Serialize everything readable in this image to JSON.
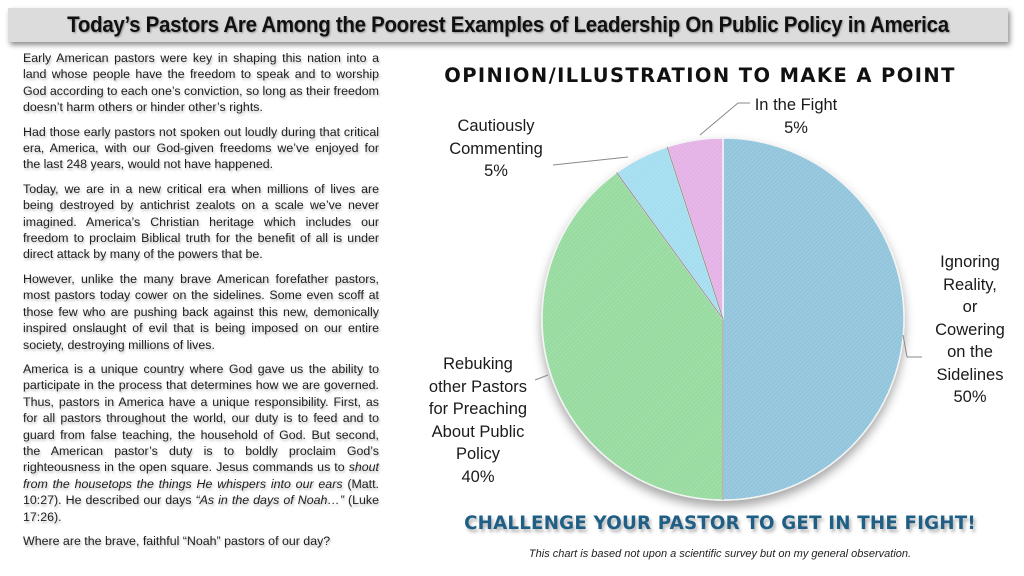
{
  "header": {
    "title": "Today’s Pastors Are Among the Poorest Examples of Leadership On Public Policy in America"
  },
  "article": {
    "paragraphs": [
      "Early American pastors were key in shaping this nation into a land whose people have the freedom to speak and to worship God according to each one’s conviction, so long as their freedom doesn’t harm others or hinder other’s rights.",
      "Had those early pastors not spoken out loudly during that critical era, America, with our God-given freedoms we’ve enjoyed for the last 248 years, would not have happened.",
      "Today, we are in a new critical era when millions of lives are being destroyed by antichrist zealots on a scale we’ve never imagined.  America’s Christian heritage which includes our freedom to proclaim Biblical truth for the benefit of all is under direct attack by many of the powers that be.",
      "However, unlike the many brave American forefather pastors, most pastors today cower on the sidelines. Some even scoff at those few who are pushing back against this new, demonically inspired onslaught of evil that is being imposed on our entire society, destroying millions of lives."
    ],
    "p5": {
      "text_a": "America is a unique country where God gave us the ability to participate in the process that determines how we are governed.  Thus, pastors in America have a unique responsibility.  First, as for all pastors throughout the world, our duty is to feed and to guard from false teaching, the household of God.  But second, the American pastor’s duty is to boldly proclaim God’s righteousness in the open square.  Jesus commands us to ",
      "italic_a": "shout from the housetops the things He whispers into our ears",
      "text_b": " (Matt. 10:27).  He described our days ",
      "italic_b": "“As in the days of Noah…”",
      "text_c": " (Luke 17:26)."
    },
    "closing": "Where are the brave, faithful “Noah” pastors of our day?"
  },
  "chart": {
    "title": "OPINION/ILLUSTRATION TO MAKE A POINT",
    "labels": {
      "fight_name": "In the Fight",
      "fight_pct": "5%",
      "cautious_l1": "Cautiously",
      "cautious_l2": "Commenting",
      "cautious_pct": "5%",
      "ignoring_l1": "Ignoring",
      "ignoring_l2": "Reality,",
      "ignoring_l3": "or",
      "ignoring_l4": "Cowering",
      "ignoring_l5": "on the",
      "ignoring_l6": "Sidelines",
      "ignoring_pct": "50%",
      "rebuking_l1": "Rebuking",
      "rebuking_l2": "other Pastors",
      "rebuking_l3": "for Preaching",
      "rebuking_l4": "About Public",
      "rebuking_l5": "Policy",
      "rebuking_pct": "40%"
    },
    "cta": "CHALLENGE YOUR PASTOR TO GET IN THE FIGHT!",
    "disclaimer": "This chart is based not upon a scientific survey but on my general observation.",
    "colors": {
      "ignoring": "#92c5dc",
      "rebuking": "#98dba0",
      "cautious": "#a4def0",
      "fight": "#e4b2e6",
      "cta": "#1f5f85"
    }
  },
  "chart_data": {
    "type": "pie",
    "title": "OPINION/ILLUSTRATION TO MAKE A POINT",
    "categories": [
      "Ignoring Reality, or Cowering on the Sidelines",
      "Rebuking other Pastors for Preaching About Public Policy",
      "Cautiously Commenting",
      "In the Fight"
    ],
    "values": [
      50,
      40,
      5,
      5
    ],
    "unit": "%",
    "start_angle": "12 o'clock, clockwise",
    "colors": [
      "#92c5dc",
      "#98dba0",
      "#a4def0",
      "#e4b2e6"
    ],
    "legend": "none (data labels with leader lines)",
    "footnote": "This chart is based not upon a scientific survey but on my general observation."
  }
}
